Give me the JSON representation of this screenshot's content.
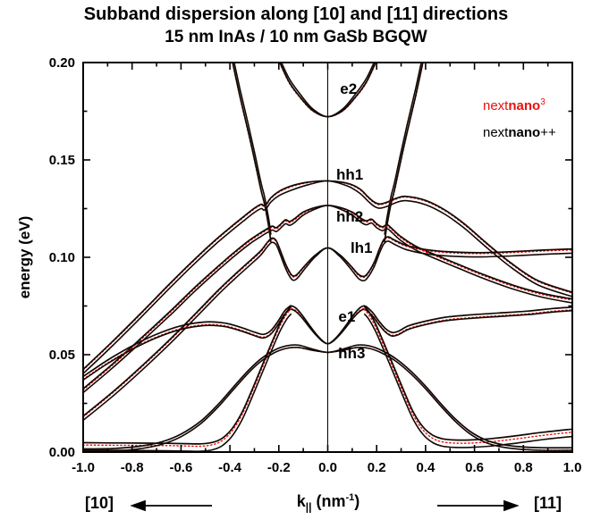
{
  "title": "Subband dispersion along [10] and [11] directions",
  "subtitle": "15 nm InAs / 10 nm GaSb BGQW",
  "legend": {
    "entries": [
      {
        "pre": "next",
        "bold": "nano",
        "sup": "3",
        "suffix": "",
        "color": "#e8120c"
      },
      {
        "pre": "next",
        "bold": "nano",
        "sup": "",
        "suffix": "++",
        "color": "#000000"
      }
    ]
  },
  "directions": {
    "left": "[10]",
    "right": "[11]"
  },
  "chart_data": {
    "type": "line",
    "title": "Subband dispersion along [10] and [11] directions",
    "subtitle": "15 nm InAs / 10 nm GaSb BGQW",
    "axes": {
      "x": {
        "label_main": "k",
        "label_sub": "||",
        "label_unit_pre": " (nm",
        "label_sup": "-1",
        "label_unit_post": ")",
        "min": -1.0,
        "max": 1.0,
        "major_ticks": [
          -1.0,
          -0.8,
          -0.6,
          -0.4,
          -0.2,
          0.0,
          0.2,
          0.4,
          0.6,
          0.8,
          1.0
        ],
        "tick_labels": [
          "-1.0",
          "-0.8",
          "-0.6",
          "-0.4",
          "-0.2",
          "0.0",
          "0.2",
          "0.4",
          "0.6",
          "0.8",
          "1.0"
        ],
        "minor_step": 0.1
      },
      "y": {
        "label": "energy (eV)",
        "min": 0.0,
        "max": 0.2,
        "major_ticks": [
          0.0,
          0.05,
          0.1,
          0.15,
          0.2
        ],
        "tick_labels": [
          "0.00",
          "0.05",
          "0.10",
          "0.15",
          "0.20"
        ],
        "minor_step": 0.025
      }
    },
    "center_line_k": 0,
    "colors": {
      "nextnano3": "#e8120c",
      "nextnanopp": "#120804"
    },
    "legend_entries": [
      "nextnano3",
      "nextnano++"
    ],
    "annotations": [
      {
        "text": "e2",
        "k": 0.085,
        "E": 0.1862
      },
      {
        "text": "hh1",
        "k": 0.09,
        "E": 0.1422
      },
      {
        "text": "hh2",
        "k": 0.09,
        "E": 0.1206
      },
      {
        "text": "lh1",
        "k": 0.138,
        "E": 0.1044
      },
      {
        "text": "e1",
        "k": 0.078,
        "E": 0.0693
      },
      {
        "text": "hh3",
        "k": 0.098,
        "E": 0.0505
      }
    ],
    "series": [
      {
        "name": "e2",
        "pair_dE": 0.0018,
        "taper": true,
        "red_dE": -0.0004,
        "pts": [
          [
            -0.215,
            0.2055
          ],
          [
            -0.16,
            0.1905
          ],
          [
            -0.11,
            0.1818
          ],
          [
            -0.06,
            0.1752
          ],
          [
            0,
            0.1722
          ],
          [
            0.06,
            0.1752
          ],
          [
            0.11,
            0.1818
          ],
          [
            0.16,
            0.1905
          ],
          [
            0.215,
            0.2055
          ]
        ]
      },
      {
        "name": "e-steep-left",
        "pair_dE": 0.0038,
        "taper": false,
        "red_dE": -0.0004,
        "pts": [
          [
            -0.398,
            0.2055
          ],
          [
            -0.36,
            0.1832
          ],
          [
            -0.325,
            0.1645
          ],
          [
            -0.3,
            0.1505
          ],
          [
            -0.282,
            0.1398
          ],
          [
            -0.27,
            0.133
          ],
          [
            -0.261,
            0.1288
          ],
          [
            -0.253,
            0.124
          ],
          [
            -0.246,
            0.1192
          ],
          [
            -0.24,
            0.1148
          ],
          [
            -0.2355,
            0.1108
          ],
          [
            -0.2325,
            0.1078
          ]
        ]
      },
      {
        "name": "e-steep-right",
        "pair_dE": 0.0038,
        "taper": false,
        "red_dE": -0.0004,
        "pts": [
          [
            0.2325,
            0.1078
          ],
          [
            0.2355,
            0.1108
          ],
          [
            0.24,
            0.1148
          ],
          [
            0.246,
            0.1192
          ],
          [
            0.253,
            0.124
          ],
          [
            0.261,
            0.1288
          ],
          [
            0.27,
            0.133
          ],
          [
            0.282,
            0.1398
          ],
          [
            0.3,
            0.1505
          ],
          [
            0.325,
            0.1645
          ],
          [
            0.36,
            0.1832
          ],
          [
            0.398,
            0.2055
          ]
        ]
      },
      {
        "name": "hh1",
        "pair_dE": -0.0022,
        "taper": true,
        "red_dE": -0.0004,
        "pts": [
          [
            -1,
            0.0425
          ],
          [
            -0.88,
            0.0568
          ],
          [
            -0.76,
            0.0718
          ],
          [
            -0.64,
            0.0872
          ],
          [
            -0.54,
            0.0995
          ],
          [
            -0.46,
            0.1088
          ],
          [
            -0.4,
            0.1152
          ],
          [
            -0.345,
            0.1208
          ],
          [
            -0.3,
            0.1252
          ],
          [
            -0.272,
            0.1272
          ],
          [
            -0.261,
            0.1264
          ],
          [
            -0.249,
            0.1276
          ],
          [
            -0.232,
            0.1306
          ],
          [
            -0.2,
            0.1338
          ],
          [
            -0.15,
            0.1366
          ],
          [
            -0.08,
            0.1386
          ],
          [
            0,
            0.1392
          ],
          [
            0.08,
            0.138
          ],
          [
            0.13,
            0.1352
          ],
          [
            0.165,
            0.131
          ],
          [
            0.19,
            0.1284
          ],
          [
            0.212,
            0.1274
          ],
          [
            0.24,
            0.1282
          ],
          [
            0.28,
            0.1303
          ],
          [
            0.32,
            0.1313
          ],
          [
            0.4,
            0.1292
          ],
          [
            0.48,
            0.1242
          ],
          [
            0.56,
            0.117
          ],
          [
            0.65,
            0.1072
          ],
          [
            0.75,
            0.097
          ],
          [
            0.86,
            0.088
          ],
          [
            1,
            0.082
          ]
        ]
      },
      {
        "name": "hh2",
        "pair_dE": -0.002,
        "taper": true,
        "red_dE": -0.0006,
        "pts": [
          [
            -1,
            0.0325
          ],
          [
            -0.88,
            0.0452
          ],
          [
            -0.76,
            0.0588
          ],
          [
            -0.64,
            0.0728
          ],
          [
            -0.54,
            0.085
          ],
          [
            -0.45,
            0.0952
          ],
          [
            -0.38,
            0.1028
          ],
          [
            -0.32,
            0.1088
          ],
          [
            -0.272,
            0.1128
          ],
          [
            -0.243,
            0.115
          ],
          [
            -0.226,
            0.116
          ],
          [
            -0.211,
            0.1152
          ],
          [
            -0.196,
            0.1166
          ],
          [
            -0.173,
            0.1192
          ],
          [
            -0.156,
            0.1184
          ],
          [
            -0.136,
            0.1198
          ],
          [
            -0.1,
            0.1232
          ],
          [
            -0.05,
            0.1256
          ],
          [
            0,
            0.1266
          ],
          [
            0.05,
            0.1256
          ],
          [
            0.1,
            0.1232
          ],
          [
            0.136,
            0.12
          ],
          [
            0.158,
            0.1187
          ],
          [
            0.179,
            0.1196
          ],
          [
            0.2,
            0.1172
          ],
          [
            0.223,
            0.1157
          ],
          [
            0.243,
            0.1167
          ],
          [
            0.263,
            0.1147
          ],
          [
            0.3,
            0.1105
          ],
          [
            0.36,
            0.1057
          ],
          [
            0.44,
            0.1013
          ],
          [
            0.53,
            0.0966
          ],
          [
            0.64,
            0.091
          ],
          [
            0.76,
            0.0856
          ],
          [
            0.88,
            0.0814
          ],
          [
            1,
            0.0786
          ]
        ]
      },
      {
        "name": "lh1",
        "pair_dE": -0.0022,
        "taper": true,
        "red_dE": -0.0005,
        "pts": [
          [
            -1,
            0.0185
          ],
          [
            -0.88,
            0.0308
          ],
          [
            -0.76,
            0.0442
          ],
          [
            -0.64,
            0.0585
          ],
          [
            -0.54,
            0.0712
          ],
          [
            -0.45,
            0.0828
          ],
          [
            -0.38,
            0.0912
          ],
          [
            -0.32,
            0.098
          ],
          [
            -0.275,
            0.1032
          ],
          [
            -0.246,
            0.1078
          ],
          [
            -0.228,
            0.1098
          ],
          [
            -0.211,
            0.1086
          ],
          [
            -0.194,
            0.1036
          ],
          [
            -0.174,
            0.097
          ],
          [
            -0.154,
            0.092
          ],
          [
            -0.141,
            0.0904
          ],
          [
            -0.124,
            0.0914
          ],
          [
            -0.09,
            0.0962
          ],
          [
            -0.05,
            0.1012
          ],
          [
            0,
            0.1048
          ],
          [
            0.05,
            0.1012
          ],
          [
            0.09,
            0.0962
          ],
          [
            0.124,
            0.0914
          ],
          [
            0.144,
            0.0902
          ],
          [
            0.161,
            0.0914
          ],
          [
            0.189,
            0.0972
          ],
          [
            0.211,
            0.1042
          ],
          [
            0.229,
            0.109
          ],
          [
            0.247,
            0.1105
          ],
          [
            0.274,
            0.1088
          ],
          [
            0.32,
            0.1062
          ],
          [
            0.4,
            0.104
          ],
          [
            0.5,
            0.1028
          ],
          [
            0.62,
            0.1024
          ],
          [
            0.75,
            0.1029
          ],
          [
            0.88,
            0.1037
          ],
          [
            1,
            0.1043
          ]
        ]
      },
      {
        "name": "e1",
        "pair_dE": -0.0018,
        "taper": true,
        "red_dE": -0.0014,
        "pts": [
          [
            -1,
            0.0388
          ],
          [
            -0.9,
            0.0472
          ],
          [
            -0.8,
            0.0545
          ],
          [
            -0.7,
            0.0605
          ],
          [
            -0.6,
            0.0648
          ],
          [
            -0.5,
            0.0668
          ],
          [
            -0.42,
            0.0662
          ],
          [
            -0.35,
            0.0638
          ],
          [
            -0.3,
            0.0616
          ],
          [
            -0.264,
            0.0604
          ],
          [
            -0.234,
            0.0622
          ],
          [
            -0.205,
            0.0668
          ],
          [
            -0.178,
            0.0722
          ],
          [
            -0.157,
            0.0747
          ],
          [
            -0.149,
            0.0751
          ],
          [
            -0.131,
            0.074
          ],
          [
            -0.107,
            0.0707
          ],
          [
            -0.08,
            0.066
          ],
          [
            -0.05,
            0.061
          ],
          [
            -0.022,
            0.0572
          ],
          [
            0,
            0.0556
          ],
          [
            0.022,
            0.0572
          ],
          [
            0.05,
            0.061
          ],
          [
            0.08,
            0.066
          ],
          [
            0.107,
            0.0707
          ],
          [
            0.131,
            0.074
          ],
          [
            0.149,
            0.0751
          ],
          [
            0.162,
            0.0742
          ],
          [
            0.185,
            0.0714
          ],
          [
            0.21,
            0.0671
          ],
          [
            0.236,
            0.0634
          ],
          [
            0.262,
            0.0614
          ],
          [
            0.29,
            0.0621
          ],
          [
            0.33,
            0.0648
          ],
          [
            0.4,
            0.0672
          ],
          [
            0.48,
            0.0692
          ],
          [
            0.58,
            0.0704
          ],
          [
            0.7,
            0.0714
          ],
          [
            0.82,
            0.0724
          ],
          [
            0.92,
            0.0737
          ],
          [
            1,
            0.0744
          ]
        ]
      },
      {
        "name": "hh-dive-left",
        "pair_dE": -0.0038,
        "taper": false,
        "red_dE": -0.0012,
        "pts": [
          [
            -0.149,
            0.0748
          ],
          [
            -0.167,
            0.0722
          ],
          [
            -0.194,
            0.0662
          ],
          [
            -0.227,
            0.0568
          ],
          [
            -0.267,
            0.0448
          ],
          [
            -0.31,
            0.0318
          ],
          [
            -0.35,
            0.0205
          ],
          [
            -0.39,
            0.0122
          ],
          [
            -0.43,
            0.0072
          ],
          [
            -0.47,
            0.005
          ],
          [
            -0.52,
            0.0042
          ],
          [
            -0.58,
            0.0043
          ],
          [
            -0.66,
            0.0045
          ],
          [
            -0.76,
            0.0046
          ],
          [
            -0.88,
            0.0047
          ],
          [
            -1,
            0.0048
          ]
        ]
      },
      {
        "name": "hh-dive-right",
        "pair_dE": -0.0038,
        "taper": false,
        "red_dE": -0.0016,
        "pts": [
          [
            0.149,
            0.0748
          ],
          [
            0.167,
            0.0722
          ],
          [
            0.194,
            0.0662
          ],
          [
            0.227,
            0.0568
          ],
          [
            0.267,
            0.0448
          ],
          [
            0.31,
            0.0318
          ],
          [
            0.35,
            0.0205
          ],
          [
            0.39,
            0.0128
          ],
          [
            0.43,
            0.0086
          ],
          [
            0.47,
            0.0068
          ],
          [
            0.52,
            0.0062
          ],
          [
            0.58,
            0.0062
          ],
          [
            0.66,
            0.0068
          ],
          [
            0.76,
            0.0082
          ],
          [
            0.88,
            0.0102
          ],
          [
            1,
            0.0118
          ]
        ]
      },
      {
        "name": "hh3",
        "pair_dE": -0.0013,
        "taper": true,
        "red_dE": -0.0013,
        "pts": [
          [
            -1,
            0.0016
          ],
          [
            -0.88,
            0.0018
          ],
          [
            -0.78,
            0.0028
          ],
          [
            -0.68,
            0.0052
          ],
          [
            -0.6,
            0.0092
          ],
          [
            -0.52,
            0.0158
          ],
          [
            -0.45,
            0.0242
          ],
          [
            -0.38,
            0.0342
          ],
          [
            -0.32,
            0.0425
          ],
          [
            -0.27,
            0.0482
          ],
          [
            -0.22,
            0.0522
          ],
          [
            -0.17,
            0.0545
          ],
          [
            -0.12,
            0.0549
          ],
          [
            -0.06,
            0.0528
          ],
          [
            0,
            0.0512
          ],
          [
            0.06,
            0.0528
          ],
          [
            0.12,
            0.0549
          ],
          [
            0.17,
            0.0545
          ],
          [
            0.22,
            0.0522
          ],
          [
            0.28,
            0.0478
          ],
          [
            0.34,
            0.0415
          ],
          [
            0.4,
            0.0338
          ],
          [
            0.46,
            0.0252
          ],
          [
            0.52,
            0.0172
          ],
          [
            0.58,
            0.0108
          ],
          [
            0.64,
            0.0065
          ],
          [
            0.7,
            0.0042
          ],
          [
            0.78,
            0.0028
          ],
          [
            0.88,
            0.0022
          ],
          [
            1,
            0.0022
          ]
        ]
      }
    ]
  }
}
